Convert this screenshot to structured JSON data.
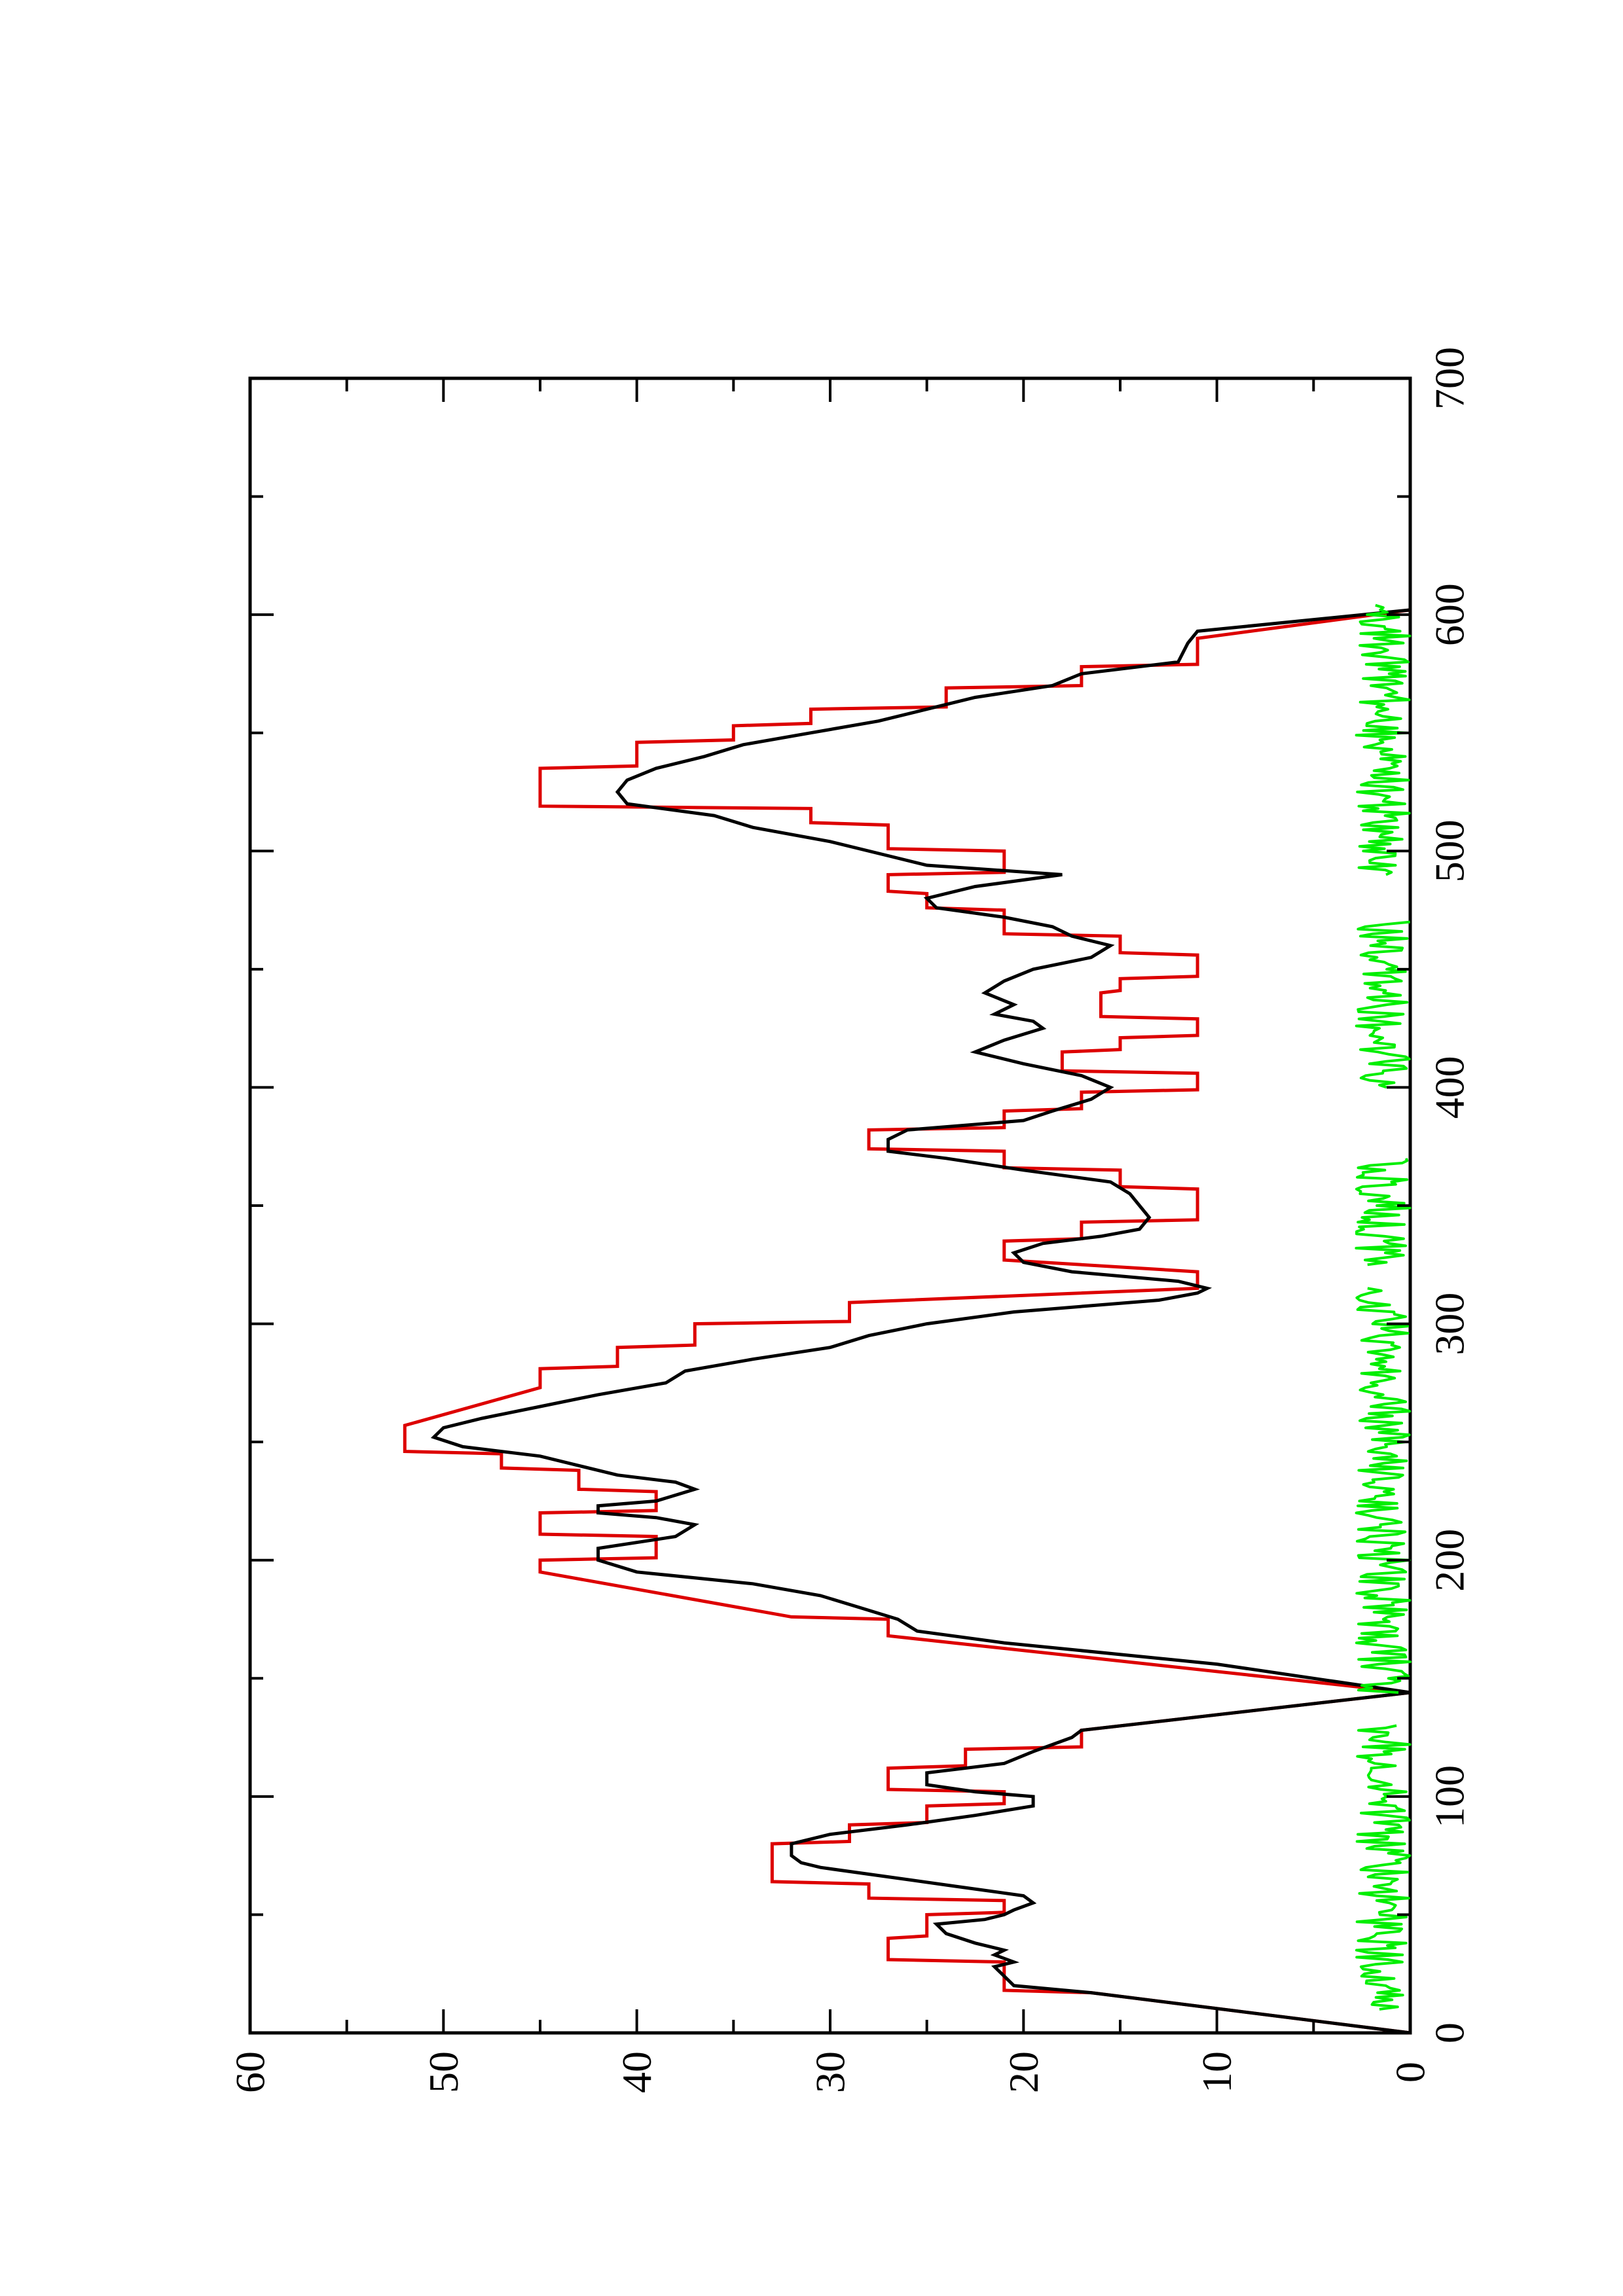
{
  "chart_data": {
    "type": "line",
    "orientation": "rotated-90-ccw",
    "title": "",
    "xlabel": "",
    "ylabel": "",
    "xlim": [
      0,
      700
    ],
    "ylim": [
      0,
      60
    ],
    "x_ticks_major": [
      0,
      100,
      200,
      300,
      400,
      500,
      600,
      700
    ],
    "x_tick_labels": [
      "0",
      "100",
      "200",
      "300",
      "400",
      "500",
      "600",
      "700"
    ],
    "x_ticks_minor": [
      50,
      150,
      250,
      350,
      450,
      550,
      650
    ],
    "y_ticks_major": [
      0,
      10,
      20,
      30,
      40,
      50,
      60
    ],
    "y_tick_labels": [
      "0",
      "10",
      "20",
      "30",
      "40",
      "50",
      "60"
    ],
    "y_ticks_minor": [
      5,
      15,
      25,
      35,
      45,
      55
    ],
    "grid": false,
    "legend": "none",
    "colors": {
      "red": "#dd0000",
      "black": "#000000",
      "green": "#00ee00",
      "frame": "#000000"
    },
    "series": [
      {
        "color": "red",
        "style": "step-profile",
        "points": [
          [
            0,
            0
          ],
          [
            17,
            16.5
          ],
          [
            18,
            21
          ],
          [
            30,
            21
          ],
          [
            31,
            27
          ],
          [
            40,
            27
          ],
          [
            41,
            25
          ],
          [
            50,
            25
          ],
          [
            51,
            21
          ],
          [
            56,
            21
          ],
          [
            57,
            28
          ],
          [
            63,
            28
          ],
          [
            64,
            33
          ],
          [
            80,
            33
          ],
          [
            81,
            29
          ],
          [
            88,
            29
          ],
          [
            89,
            25
          ],
          [
            96,
            25
          ],
          [
            97,
            21
          ],
          [
            102,
            21
          ],
          [
            103,
            27
          ],
          [
            112,
            27
          ],
          [
            113,
            23
          ],
          [
            120,
            23
          ],
          [
            121,
            17
          ],
          [
            128,
            17
          ],
          [
            144,
            0
          ],
          [
            168,
            27
          ],
          [
            175,
            27
          ],
          [
            176,
            32
          ],
          [
            195,
            45
          ],
          [
            200,
            45
          ],
          [
            201,
            39
          ],
          [
            210,
            39
          ],
          [
            211,
            45
          ],
          [
            220,
            45
          ],
          [
            221,
            39
          ],
          [
            229,
            39
          ],
          [
            230,
            43
          ],
          [
            238,
            43
          ],
          [
            239,
            47
          ],
          [
            245,
            47
          ],
          [
            246,
            52
          ],
          [
            257,
            52
          ],
          [
            273,
            45
          ],
          [
            281,
            45
          ],
          [
            282,
            41
          ],
          [
            290,
            41
          ],
          [
            291,
            37
          ],
          [
            300,
            37
          ],
          [
            301,
            29
          ],
          [
            309,
            29
          ],
          [
            315,
            11
          ],
          [
            322,
            11
          ],
          [
            327,
            21
          ],
          [
            335,
            21
          ],
          [
            336,
            17
          ],
          [
            343,
            17
          ],
          [
            344,
            11
          ],
          [
            357,
            11
          ],
          [
            358,
            15
          ],
          [
            365,
            15
          ],
          [
            366,
            21
          ],
          [
            373,
            21
          ],
          [
            374,
            28
          ],
          [
            382,
            28
          ],
          [
            383,
            21
          ],
          [
            390,
            21
          ],
          [
            391,
            17
          ],
          [
            398,
            17
          ],
          [
            399,
            11
          ],
          [
            406,
            11
          ],
          [
            407,
            18
          ],
          [
            415,
            18
          ],
          [
            416,
            15
          ],
          [
            421,
            15
          ],
          [
            422,
            11
          ],
          [
            429,
            11
          ],
          [
            430,
            16
          ],
          [
            440,
            16
          ],
          [
            441,
            15
          ],
          [
            446,
            15
          ],
          [
            447,
            11
          ],
          [
            456,
            11
          ],
          [
            457,
            15
          ],
          [
            464,
            15
          ],
          [
            465,
            21
          ],
          [
            475,
            21
          ],
          [
            476,
            25
          ],
          [
            482,
            25
          ],
          [
            483,
            27
          ],
          [
            490,
            27
          ],
          [
            491,
            21
          ],
          [
            500,
            21
          ],
          [
            501,
            27
          ],
          [
            511,
            27
          ],
          [
            512,
            31
          ],
          [
            518,
            31
          ],
          [
            519,
            45
          ],
          [
            535,
            45
          ],
          [
            536,
            40
          ],
          [
            546,
            40
          ],
          [
            547,
            35
          ],
          [
            553,
            35
          ],
          [
            554,
            31
          ],
          [
            560,
            31
          ],
          [
            561,
            24
          ],
          [
            569,
            24
          ],
          [
            570,
            17
          ],
          [
            578,
            17
          ],
          [
            579,
            11
          ],
          [
            590,
            11
          ],
          [
            602,
            0
          ]
        ]
      },
      {
        "color": "black",
        "style": "line",
        "points": [
          [
            0,
            0
          ],
          [
            17,
            16.5
          ],
          [
            20,
            20.5
          ],
          [
            24,
            21
          ],
          [
            28,
            21.5
          ],
          [
            30,
            20.5
          ],
          [
            33,
            21.5
          ],
          [
            35,
            21
          ],
          [
            38,
            22.5
          ],
          [
            42,
            24
          ],
          [
            46,
            24.5
          ],
          [
            48,
            22
          ],
          [
            50,
            21
          ],
          [
            52,
            20.5
          ],
          [
            55,
            19.5
          ],
          [
            58,
            20
          ],
          [
            62,
            23.5
          ],
          [
            66,
            27
          ],
          [
            70,
            30.5
          ],
          [
            72,
            31.5
          ],
          [
            75,
            32
          ],
          [
            80,
            32
          ],
          [
            84,
            30
          ],
          [
            88,
            26
          ],
          [
            92,
            22.5
          ],
          [
            96,
            19.5
          ],
          [
            100,
            19.5
          ],
          [
            102,
            22.5
          ],
          [
            105,
            25
          ],
          [
            110,
            25
          ],
          [
            114,
            21
          ],
          [
            119,
            19.5
          ],
          [
            125,
            17.5
          ],
          [
            128,
            17
          ],
          [
            144,
            0
          ],
          [
            156,
            10
          ],
          [
            165,
            21
          ],
          [
            170,
            25.5
          ],
          [
            175,
            26.5
          ],
          [
            180,
            28.5
          ],
          [
            185,
            30.5
          ],
          [
            190,
            34
          ],
          [
            195,
            40
          ],
          [
            200,
            42
          ],
          [
            205,
            42
          ],
          [
            210,
            38
          ],
          [
            215,
            37
          ],
          [
            218,
            39
          ],
          [
            220,
            42
          ],
          [
            223,
            42
          ],
          [
            225,
            39
          ],
          [
            230,
            37
          ],
          [
            233,
            38
          ],
          [
            236,
            41
          ],
          [
            240,
            43
          ],
          [
            244,
            45
          ],
          [
            248,
            49
          ],
          [
            252,
            50.5
          ],
          [
            256,
            50
          ],
          [
            260,
            48
          ],
          [
            265,
            45
          ],
          [
            270,
            42
          ],
          [
            275,
            38.5
          ],
          [
            280,
            37.5
          ],
          [
            285,
            34
          ],
          [
            290,
            30
          ],
          [
            295,
            28
          ],
          [
            300,
            25
          ],
          [
            305,
            20.5
          ],
          [
            310,
            13
          ],
          [
            313,
            11
          ],
          [
            315,
            10.5
          ],
          [
            318,
            12
          ],
          [
            322,
            17.5
          ],
          [
            326,
            20
          ],
          [
            330,
            20.5
          ],
          [
            334,
            19
          ],
          [
            337,
            16
          ],
          [
            340,
            14
          ],
          [
            345,
            13.5
          ],
          [
            350,
            14
          ],
          [
            355,
            14.5
          ],
          [
            360,
            15.5
          ],
          [
            365,
            20
          ],
          [
            370,
            24
          ],
          [
            373,
            27
          ],
          [
            378,
            27
          ],
          [
            382,
            26
          ],
          [
            386,
            20
          ],
          [
            390,
            18.5
          ],
          [
            395,
            16.5
          ],
          [
            400,
            15.5
          ],
          [
            405,
            17
          ],
          [
            410,
            20
          ],
          [
            415,
            22.5
          ],
          [
            420,
            21
          ],
          [
            425,
            19
          ],
          [
            428,
            19.5
          ],
          [
            431,
            21.5
          ],
          [
            435,
            20.5
          ],
          [
            440,
            22
          ],
          [
            445,
            21
          ],
          [
            450,
            19.5
          ],
          [
            455,
            16.5
          ],
          [
            460,
            15.5
          ],
          [
            464,
            17.5
          ],
          [
            468,
            18.5
          ],
          [
            472,
            21
          ],
          [
            476,
            24.5
          ],
          [
            480,
            25
          ],
          [
            485,
            22.5
          ],
          [
            490,
            18
          ],
          [
            494,
            25
          ],
          [
            498,
            27
          ],
          [
            504,
            30
          ],
          [
            510,
            34
          ],
          [
            515,
            36
          ],
          [
            520,
            40.5
          ],
          [
            525,
            41
          ],
          [
            530,
            40.5
          ],
          [
            535,
            39
          ],
          [
            540,
            36.5
          ],
          [
            545,
            34.5
          ],
          [
            550,
            31
          ],
          [
            555,
            27.5
          ],
          [
            560,
            25
          ],
          [
            565,
            22.5
          ],
          [
            570,
            18.5
          ],
          [
            575,
            17
          ],
          [
            580,
            12
          ],
          [
            588,
            11.5
          ],
          [
            593,
            11
          ],
          [
            602,
            0
          ]
        ]
      },
      {
        "color": "green",
        "style": "noise-near-zero",
        "amplitude": 2.8,
        "segments": [
          [
            10,
            130
          ],
          [
            144,
            315
          ],
          [
            325,
            370
          ],
          [
            400,
            470
          ],
          [
            490,
            604
          ]
        ]
      }
    ]
  }
}
